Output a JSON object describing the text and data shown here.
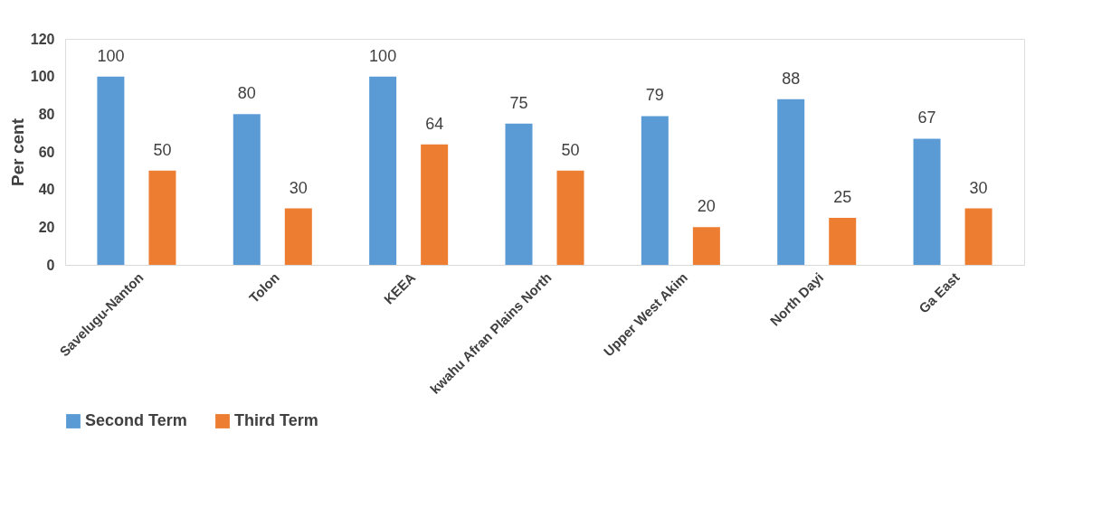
{
  "chart_data": {
    "type": "bar",
    "ylabel": "Per cent",
    "categories": [
      "Savelugu-Nanton",
      "Tolon",
      "KEEA",
      "kwahu Afran Plains North",
      "Upper West Akim",
      "North Dayi",
      "Ga East"
    ],
    "series": [
      {
        "name": "Second Term",
        "color": "#5b9bd5",
        "values": [
          100,
          80,
          100,
          75,
          79,
          88,
          67
        ]
      },
      {
        "name": "Third Term",
        "color": "#ed7d31",
        "values": [
          50,
          30,
          64,
          50,
          20,
          25,
          30
        ]
      }
    ],
    "ylim": [
      0,
      120
    ],
    "yticks": [
      0,
      20,
      40,
      60,
      80,
      100,
      120
    ],
    "grid": false,
    "legend": "bottom",
    "data_labels": true
  }
}
